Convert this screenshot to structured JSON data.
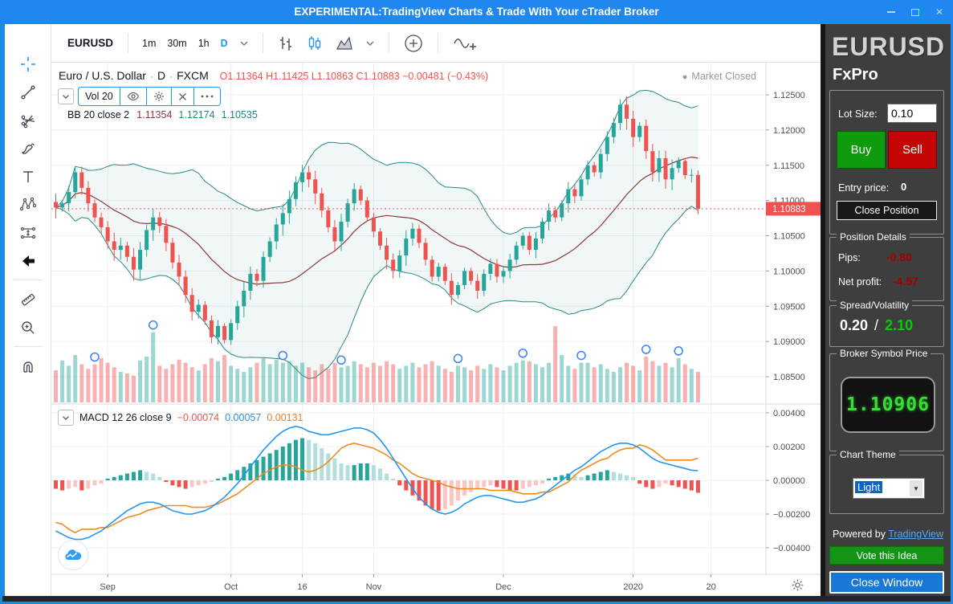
{
  "titlebar": {
    "title": "EXPERIMENTAL:TradingView Charts & Trade With Your cTrader Broker"
  },
  "toolbar": {
    "symbol": "EURUSD",
    "intervals": [
      "1m",
      "30m",
      "1h",
      "D"
    ],
    "active_interval": "D"
  },
  "chart": {
    "symbol_title": "Euro / U.S. Dollar",
    "separator": "·",
    "interval": "D",
    "exchange": "FXCM",
    "ohlc_text": "O1.11364  H1.11425  L1.10863  C1.10883  −0.00481 (−0.43%)",
    "market_closed": "Market Closed",
    "vol_legend": "Vol 20",
    "bb_legend": "BB 20 close 2",
    "bb_v1": "1.11354",
    "bb_v2": "1.12174",
    "bb_v3": "1.10535",
    "macd_legend": "MACD 12 26 close 9",
    "macd_v1": "−0.00074",
    "macd_v2": "0.00057",
    "macd_v3": "0.00131"
  },
  "chart_data": {
    "type": "candlestick",
    "symbol": "EURUSD",
    "interval": "D",
    "exchange": "FXCM",
    "title": "Euro / U.S. Dollar",
    "price_axis_ticks": [
      1.125,
      1.12,
      1.115,
      1.11,
      1.105,
      1.1,
      1.095,
      1.09,
      1.085
    ],
    "macd_axis_ticks": [
      0.004,
      0.002,
      0,
      -0.002,
      -0.004
    ],
    "time_labels": [
      "Sep",
      "Oct",
      "16",
      "Nov",
      "Dec",
      "2020",
      "20"
    ],
    "time_tick_indices": [
      8,
      27,
      38,
      49,
      69,
      89,
      101
    ],
    "last_price": 1.10883,
    "ohlc_last": {
      "open": 1.11364,
      "high": 1.11425,
      "low": 1.10863,
      "close": 1.10883,
      "change": -0.00481,
      "change_pct": -0.43
    },
    "indicators": {
      "bollinger": {
        "length": 20,
        "source": "close",
        "mult": 2,
        "basis": 1.11354,
        "upper": 1.12174,
        "lower": 1.10535
      },
      "volume_ma": 20,
      "macd": {
        "fast": 12,
        "slow": 26,
        "signal": 9,
        "hist_last": -0.00074,
        "macd_last": 0.00057,
        "signal_last": 0.00131
      }
    },
    "closes": [
      1.109,
      1.1096,
      1.1112,
      1.114,
      1.1118,
      1.1096,
      1.1076,
      1.1062,
      1.1042,
      1.103,
      1.1036,
      1.102,
      1.1002,
      1.103,
      1.1058,
      1.1076,
      1.1064,
      1.104,
      1.1012,
      1.0992,
      1.0966,
      1.0942,
      1.0952,
      1.093,
      1.0906,
      1.0922,
      1.0902,
      1.0926,
      1.095,
      1.0972,
      1.0996,
      1.0986,
      1.102,
      1.1042,
      1.1066,
      1.1082,
      1.1102,
      1.1126,
      1.114,
      1.113,
      1.111,
      1.1086,
      1.1062,
      1.1042,
      1.107,
      1.1096,
      1.1116,
      1.11,
      1.1076,
      1.1056,
      1.1036,
      1.1016,
      1.1,
      1.1022,
      1.1046,
      1.106,
      1.104,
      1.1016,
      1.0992,
      1.1006,
      1.0986,
      1.0966,
      1.098,
      1.1,
      1.0986,
      1.0972,
      1.0996,
      1.101,
      1.0992,
      1.1,
      1.1016,
      1.1036,
      1.105,
      1.103,
      1.1046,
      1.107,
      1.1086,
      1.1076,
      1.1096,
      1.1116,
      1.1106,
      1.113,
      1.115,
      1.114,
      1.1166,
      1.119,
      1.121,
      1.1236,
      1.1216,
      1.119,
      1.1206,
      1.117,
      1.114,
      1.116,
      1.113,
      1.1146,
      1.1156,
      1.1136,
      1.11364,
      1.10883
    ],
    "volumes": [
      0.42,
      0.55,
      0.48,
      0.62,
      0.5,
      0.44,
      0.5,
      0.58,
      0.52,
      0.46,
      0.4,
      0.38,
      0.35,
      0.55,
      0.6,
      0.92,
      0.48,
      0.44,
      0.5,
      0.56,
      0.52,
      0.46,
      0.42,
      0.5,
      0.58,
      0.54,
      0.62,
      0.48,
      0.44,
      0.4,
      0.46,
      0.52,
      0.58,
      0.5,
      0.56,
      0.52,
      0.54,
      0.48,
      0.52,
      0.46,
      0.42,
      0.5,
      0.44,
      0.52,
      0.46,
      0.48,
      0.54,
      0.5,
      0.46,
      0.52,
      0.48,
      0.54,
      0.5,
      0.44,
      0.48,
      0.52,
      0.46,
      0.5,
      0.54,
      0.48,
      0.44,
      0.4,
      0.48,
      0.46,
      0.42,
      0.48,
      0.44,
      0.5,
      0.46,
      0.42,
      0.48,
      0.52,
      0.55,
      0.54,
      0.5,
      0.46,
      0.52,
      1.0,
      0.62,
      0.48,
      0.44,
      0.52,
      0.52,
      0.46,
      0.5,
      0.44,
      0.4,
      0.46,
      0.52,
      0.48,
      0.42,
      0.6,
      0.54,
      0.48,
      0.52,
      0.46,
      0.58,
      0.5,
      0.44,
      0.4
    ],
    "volume_spike_indices": [
      6,
      15,
      35,
      44,
      62,
      72,
      81,
      91,
      96
    ],
    "macd_line": [
      -0.003,
      -0.0032,
      -0.0034,
      -0.0035,
      -0.0035,
      -0.0034,
      -0.0032,
      -0.003,
      -0.0027,
      -0.0024,
      -0.0021,
      -0.0018,
      -0.0016,
      -0.0014,
      -0.0013,
      -0.0013,
      -0.0014,
      -0.0016,
      -0.0018,
      -0.0019,
      -0.002,
      -0.002,
      -0.0019,
      -0.0018,
      -0.0016,
      -0.0013,
      -0.001,
      -0.0006,
      -0.0002,
      0.0003,
      0.0008,
      0.0013,
      0.0018,
      0.0022,
      0.0026,
      0.0029,
      0.0031,
      0.0032,
      0.0031,
      0.0029,
      0.0028,
      0.0027,
      0.0027,
      0.0028,
      0.0029,
      0.003,
      0.0031,
      0.0031,
      0.003,
      0.0028,
      0.0024,
      0.0019,
      0.0013,
      0.0007,
      0.0001,
      -0.0005,
      -0.001,
      -0.0014,
      -0.0017,
      -0.0019,
      -0.002,
      -0.0019,
      -0.0017,
      -0.0014,
      -0.0012,
      -0.001,
      -0.0009,
      -0.0009,
      -0.001,
      -0.0011,
      -0.0012,
      -0.0013,
      -0.0013,
      -0.0012,
      -0.0011,
      -0.0009,
      -0.0006,
      -0.0003,
      0.0,
      0.0003,
      0.0006,
      0.0008,
      0.0011,
      0.0014,
      0.0017,
      0.0019,
      0.0021,
      0.0022,
      0.0022,
      0.0021,
      0.0019,
      0.0016,
      0.0013,
      0.0011,
      0.001,
      0.0009,
      0.0008,
      0.0007,
      0.0006,
      0.00057
    ],
    "macd_hist": [
      -0.0005,
      -0.0006,
      -0.0005,
      -0.0004,
      -0.0006,
      -0.0005,
      -0.0003,
      -0.0002,
      0.0001,
      0.0002,
      0.0003,
      0.0004,
      0.0005,
      0.0006,
      0.0005,
      0.0004,
      0.0002,
      -0.0001,
      -0.0003,
      -0.0004,
      -0.0005,
      -0.0004,
      -0.0003,
      -0.0002,
      -0.0001,
      0.0001,
      0.0002,
      0.0004,
      0.0006,
      0.0008,
      0.001,
      0.0012,
      0.0014,
      0.0016,
      0.0018,
      0.002,
      0.0022,
      0.0024,
      0.0025,
      0.0024,
      0.0022,
      0.0019,
      0.0016,
      0.0013,
      0.001,
      0.0009,
      0.0009,
      0.001,
      0.001,
      0.0009,
      0.0007,
      0.0004,
      0.0001,
      -0.0003,
      -0.0006,
      -0.0009,
      -0.0012,
      -0.0015,
      -0.0017,
      -0.0018,
      -0.0017,
      -0.0015,
      -0.0012,
      -0.0009,
      -0.0007,
      -0.0005,
      -0.0004,
      -0.0003,
      -0.0004,
      -0.0005,
      -0.0006,
      -0.0006,
      -0.0005,
      -0.0004,
      -0.0003,
      -0.0002,
      0.0001,
      0.0002,
      0.0003,
      0.0004,
      0.0003,
      0.0002,
      0.0003,
      0.0004,
      0.0005,
      0.0006,
      0.0005,
      0.0004,
      0.0003,
      0.0002,
      -0.0002,
      -0.0004,
      -0.0005,
      -0.0004,
      -0.0002,
      -0.0003,
      -0.0004,
      -0.0005,
      -0.0006,
      -0.00074
    ],
    "colors": {
      "up": "#26a69a",
      "down": "#ef5350",
      "bb_band": "#2a8a82",
      "bb_basis": "#8b3a3a",
      "macd_line": "#2196f3",
      "signal_line": "#f08a1d",
      "hist_pos": "#26a69a",
      "hist_pos_falling": "#b2dfdb",
      "hist_neg": "#ef5350",
      "hist_neg_rising": "#fbc5c2",
      "last_price_badge": "#ef5350"
    }
  },
  "sidebar": {
    "symbol": "EURUSD",
    "broker": "FxPro",
    "lot_size_label": "Lot Size:",
    "lot_size_value": "0.10",
    "buy_label": "Buy",
    "sell_label": "Sell",
    "entry_price_label": "Entry price:",
    "entry_price_value": "0",
    "close_position_label": "Close Position",
    "position_details": {
      "title": "Position Details",
      "pips_label": "Pips:",
      "pips_value": "-0.80",
      "net_profit_label": "Net profit:",
      "net_profit_value": "-4.57"
    },
    "spread_volatility": {
      "title": "Spread/Volatility",
      "spread": "0.20",
      "separator": "/",
      "volatility": "2.10"
    },
    "broker_symbol_price": {
      "title": "Broker Symbol Price",
      "price": "1.10906"
    },
    "chart_theme": {
      "title": "Chart Theme",
      "selected": "Light"
    },
    "powered_by": {
      "text": "Powered by",
      "link": "TradingView"
    },
    "vote_button": "Vote this Idea",
    "close_window_button": "Close Window"
  }
}
